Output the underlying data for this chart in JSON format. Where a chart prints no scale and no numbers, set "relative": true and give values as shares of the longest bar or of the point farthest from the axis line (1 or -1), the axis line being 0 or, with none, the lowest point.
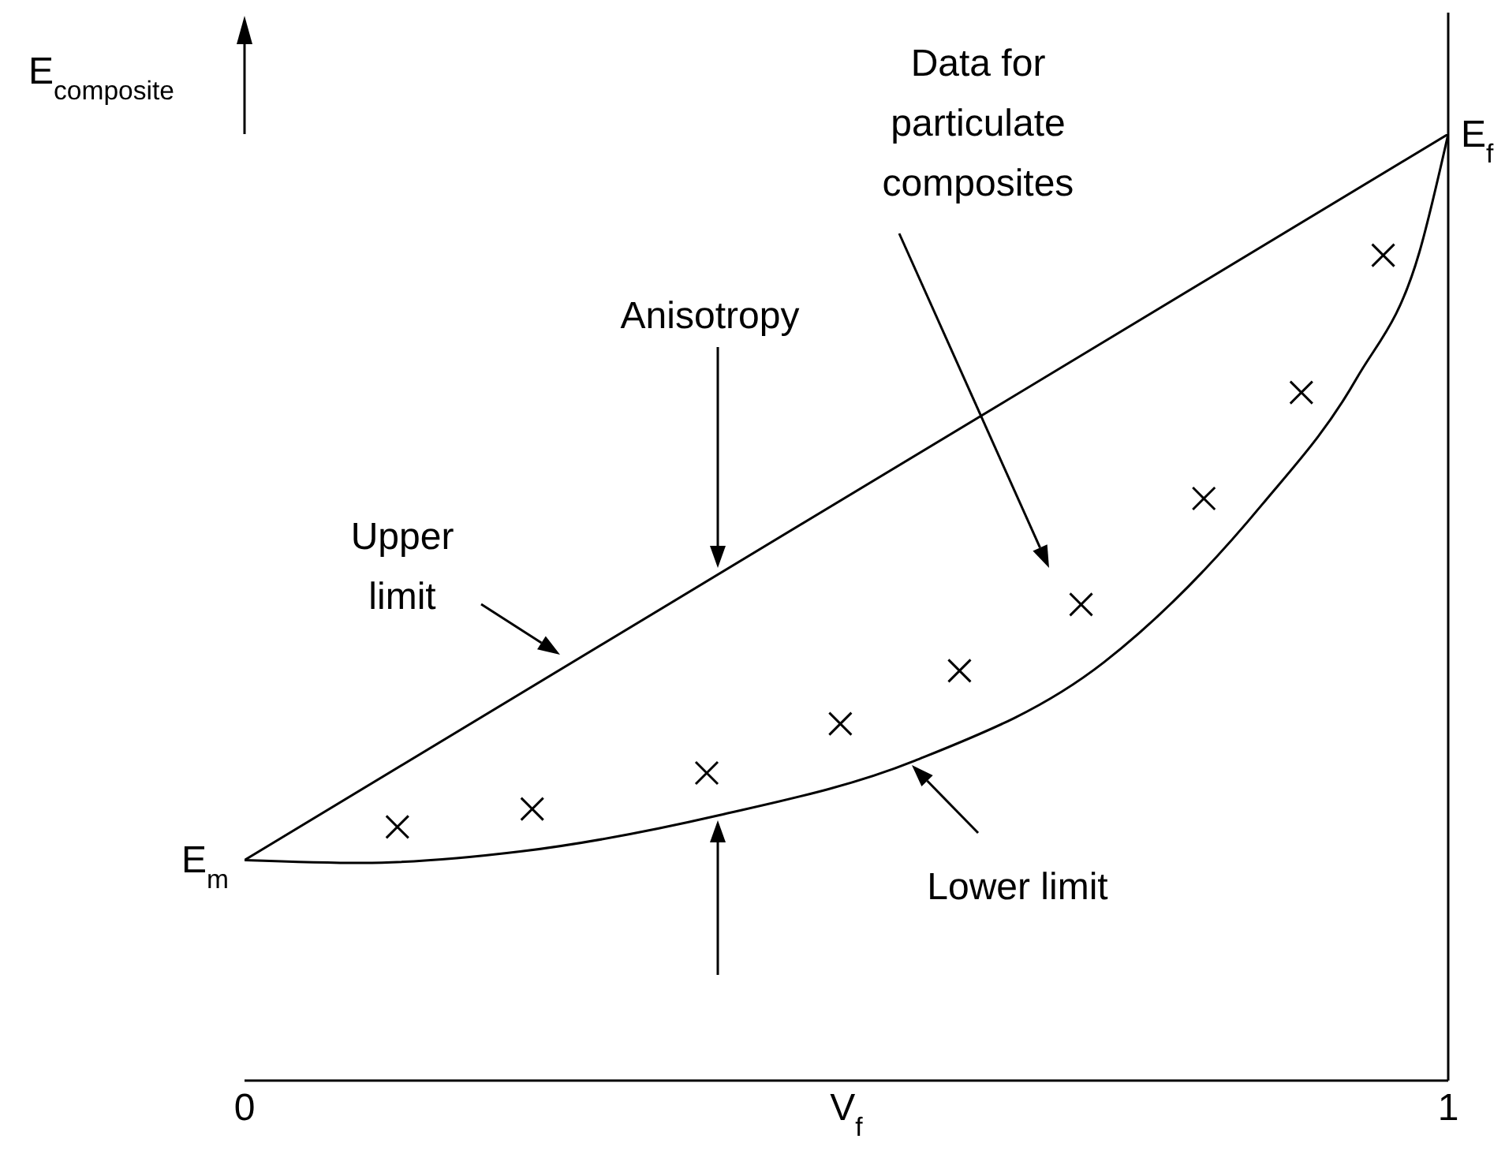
{
  "chart_data": {
    "type": "line",
    "relative": true,
    "xlabel": "V$_{f}$",
    "ylabel": "E$_{composite}$",
    "xlim": [
      0,
      1
    ],
    "xticks": [
      0,
      1
    ],
    "series": [
      {
        "color": "#000000",
        "x": [
          0,
          1
        ],
        "values": [
          0.233,
          1
        ]
      },
      {
        "color": "#000000",
        "x": [
          0,
          0.098,
          0.229,
          0.393,
          0.557,
          0.714,
          0.845,
          0.924,
          0.976,
          1
        ],
        "values": [
          0.233,
          0.23,
          0.242,
          0.28,
          0.338,
          0.442,
          0.608,
          0.742,
          0.875,
          1
        ]
      },
      {
        "type": "scatter",
        "color": "#000000",
        "marker": "cross",
        "x": [
          0.127,
          0.239,
          0.384,
          0.495,
          0.594,
          0.695,
          0.797,
          0.878,
          0.946
        ],
        "values": [
          0.268,
          0.287,
          0.325,
          0.377,
          0.433,
          0.503,
          0.615,
          0.727,
          0.872
        ]
      }
    ],
    "ref_lines": [
      {
        "axis": "x",
        "value": 1,
        "color": "#000000"
      }
    ],
    "annotations": [
      "Anisotropy",
      "Upper limit",
      "Lower limit",
      "Data for particulate composites",
      {
        "text": "E$_{m}$",
        "x": 0,
        "y": 0.233
      },
      {
        "text": "E$_{f}$",
        "x": 1,
        "y": 1
      }
    ]
  }
}
